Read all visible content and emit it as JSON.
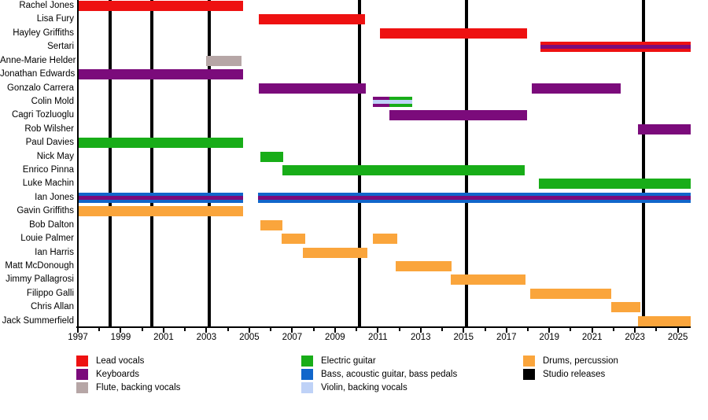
{
  "chart_data": {
    "type": "gantt",
    "subtype": "band-members-timeline",
    "title": "",
    "xlabel": "",
    "ylabel": "",
    "grid": false,
    "x_axis": {
      "min": 1997,
      "max": 2025.6,
      "labeled_tick_years": [
        1997,
        1999,
        2001,
        2003,
        2005,
        2007,
        2009,
        2011,
        2013,
        2015,
        2017,
        2019,
        2021,
        2023,
        2025
      ],
      "minor_tick_every_years": 1
    },
    "palette": {
      "red": "#ee1111",
      "purple": "#7b0b7b",
      "flute": "#b6a6a6",
      "green": "#18ad18",
      "blue": "#1166cb",
      "violin": "#bfd2f7",
      "orange": "#faa53c",
      "black": "#000000"
    },
    "release_years": [
      1998.5,
      2000.45,
      2003.13,
      2010.15,
      2015.15,
      2023.4
    ],
    "members": [
      {
        "name": "Rachel Jones",
        "bars": [
          {
            "start": 1997,
            "end": 2004.7,
            "color": "red"
          }
        ]
      },
      {
        "name": "Lisa Fury",
        "bars": [
          {
            "start": 2005.45,
            "end": 2010.4,
            "color": "red"
          }
        ]
      },
      {
        "name": "Hayley Griffiths",
        "bars": [
          {
            "start": 2011.1,
            "end": 2017.95,
            "color": "red"
          }
        ]
      },
      {
        "name": "Sertari",
        "bars": [
          {
            "start": 2018.6,
            "end": 2025.6,
            "color": "red",
            "stripe": "purple"
          }
        ]
      },
      {
        "name": "Anne-Marie Helder",
        "bars": [
          {
            "start": 2003.0,
            "end": 2004.65,
            "color": "flute"
          }
        ]
      },
      {
        "name": "Jonathan Edwards",
        "bars": [
          {
            "start": 1997,
            "end": 2004.7,
            "color": "purple"
          }
        ]
      },
      {
        "name": "Gonzalo Carrera",
        "bars": [
          {
            "start": 2005.45,
            "end": 2010.45,
            "color": "purple"
          },
          {
            "start": 2018.2,
            "end": 2022.35,
            "color": "purple"
          }
        ]
      },
      {
        "name": "Colin Mold",
        "bars": [
          {
            "start": 2010.75,
            "end": 2011.55,
            "color": "purple",
            "stripe": "violin"
          },
          {
            "start": 2011.55,
            "end": 2012.6,
            "color": "green",
            "stripe": "violin"
          }
        ]
      },
      {
        "name": "Cagri Tozluoglu",
        "bars": [
          {
            "start": 2011.55,
            "end": 2017.95,
            "color": "purple"
          }
        ]
      },
      {
        "name": "Rob Wilsher",
        "bars": [
          {
            "start": 2023.15,
            "end": 2025.6,
            "color": "purple"
          }
        ]
      },
      {
        "name": "Paul Davies",
        "bars": [
          {
            "start": 1997,
            "end": 2004.7,
            "color": "green"
          }
        ]
      },
      {
        "name": "Nick May",
        "bars": [
          {
            "start": 2005.5,
            "end": 2006.6,
            "color": "green"
          }
        ]
      },
      {
        "name": "Enrico Pinna",
        "bars": [
          {
            "start": 2006.55,
            "end": 2017.85,
            "color": "green"
          }
        ]
      },
      {
        "name": "Luke Machin",
        "bars": [
          {
            "start": 2018.5,
            "end": 2025.6,
            "color": "green"
          }
        ]
      },
      {
        "name": "Ian Jones",
        "bars": [
          {
            "start": 1997,
            "end": 2004.7,
            "color": "blue",
            "stripe": "purple"
          },
          {
            "start": 2005.4,
            "end": 2025.6,
            "color": "blue",
            "stripe": "purple"
          }
        ]
      },
      {
        "name": "Gavin Griffiths",
        "bars": [
          {
            "start": 1997,
            "end": 2004.7,
            "color": "orange"
          }
        ]
      },
      {
        "name": "Bob Dalton",
        "bars": [
          {
            "start": 2005.5,
            "end": 2006.55,
            "color": "orange"
          }
        ]
      },
      {
        "name": "Louie Palmer",
        "bars": [
          {
            "start": 2006.5,
            "end": 2007.6,
            "color": "orange"
          },
          {
            "start": 2010.75,
            "end": 2011.9,
            "color": "orange"
          }
        ]
      },
      {
        "name": "Ian Harris",
        "bars": [
          {
            "start": 2007.5,
            "end": 2010.5,
            "color": "orange"
          }
        ]
      },
      {
        "name": "Matt McDonough",
        "bars": [
          {
            "start": 2011.85,
            "end": 2014.45,
            "color": "orange"
          }
        ]
      },
      {
        "name": "Jimmy Pallagrosi",
        "bars": [
          {
            "start": 2014.4,
            "end": 2017.9,
            "color": "orange"
          }
        ]
      },
      {
        "name": "Filippo Galli",
        "bars": [
          {
            "start": 2018.1,
            "end": 2021.9,
            "color": "orange"
          }
        ]
      },
      {
        "name": "Chris Allan",
        "bars": [
          {
            "start": 2021.9,
            "end": 2023.25,
            "color": "orange"
          }
        ]
      },
      {
        "name": "Jack Summerfield",
        "bars": [
          {
            "start": 2023.15,
            "end": 2025.6,
            "color": "orange"
          }
        ]
      }
    ],
    "legend": {
      "position": "bottom",
      "columns": [
        [
          {
            "label": "Lead vocals",
            "color": "red"
          },
          {
            "label": "Keyboards",
            "color": "purple"
          },
          {
            "label": "Flute, backing vocals",
            "color": "flute"
          }
        ],
        [
          {
            "label": "Electric guitar",
            "color": "green"
          },
          {
            "label": "Bass, acoustic guitar, bass pedals",
            "color": "blue"
          },
          {
            "label": "Violin, backing vocals",
            "color": "violin"
          }
        ],
        [
          {
            "label": "Drums, percussion",
            "color": "orange"
          },
          {
            "label": "Studio releases",
            "color": "black"
          }
        ]
      ]
    }
  }
}
